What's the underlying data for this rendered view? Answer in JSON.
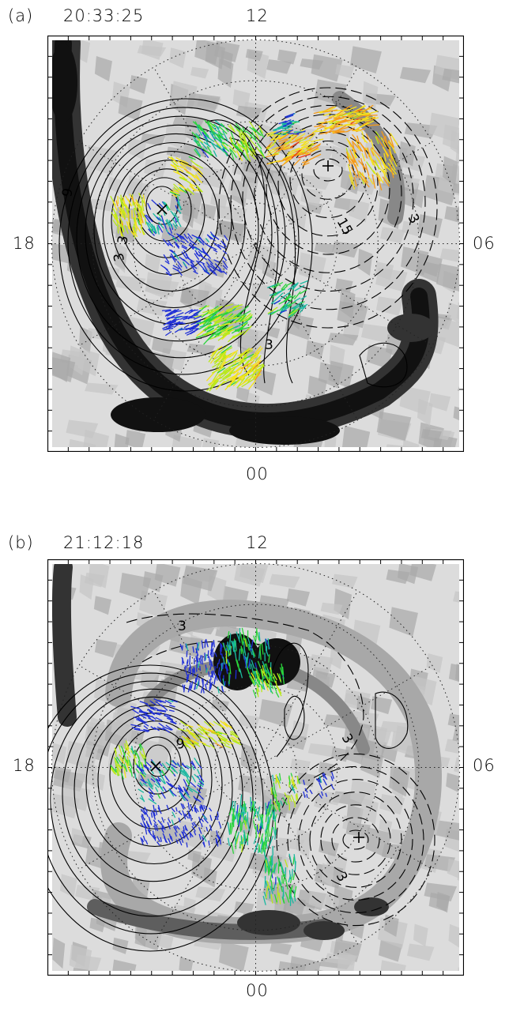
{
  "panels": [
    {
      "id": "a",
      "label": "(a)",
      "time": "20:33:25",
      "mlt_top": "12",
      "mlt_left": "18",
      "mlt_right": "06",
      "mlt_bottom": "00",
      "contour_labels": [
        "9",
        "3",
        "15",
        "3",
        "3",
        "3"
      ],
      "markers": [
        "cross-x",
        "plus"
      ]
    },
    {
      "id": "b",
      "label": "(b)",
      "time": "21:12:18",
      "mlt_top": "12",
      "mlt_left": "18",
      "mlt_right": "06",
      "mlt_bottom": "00",
      "contour_labels": [
        "3",
        "9",
        "3",
        "3"
      ],
      "markers": [
        "cross-x",
        "plus"
      ]
    }
  ],
  "vector_colors": [
    "#1f2fd6",
    "#19b8a0",
    "#2ad43a",
    "#b9e81a",
    "#f5e21a",
    "#f59a1a",
    "#e8331a"
  ],
  "background_shading": [
    "#dcdcdc",
    "#c4c4c4",
    "#a8a8a8",
    "#888888",
    "#5e5e5e",
    "#333333",
    "#111111"
  ]
}
